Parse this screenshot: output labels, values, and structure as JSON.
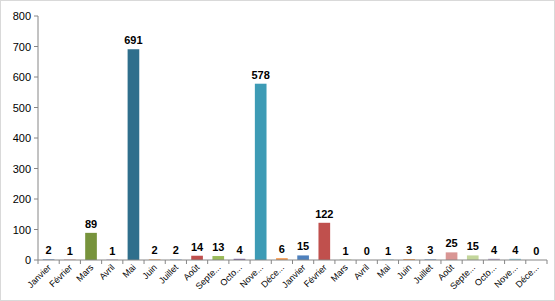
{
  "chart_data": {
    "type": "bar",
    "categories": [
      "Janvier",
      "Février",
      "Mars",
      "Avril",
      "Mai",
      "Juin",
      "Juillet",
      "Août",
      "Septe...",
      "Octo...",
      "Nove...",
      "Déce...",
      "Janvier",
      "Février",
      "Mars",
      "Avril",
      "Mai",
      "Juin",
      "Juillet",
      "Août",
      "Septe...",
      "Octo...",
      "Nove...",
      "Déce..."
    ],
    "values": [
      2,
      1,
      89,
      1,
      691,
      2,
      2,
      14,
      13,
      4,
      578,
      6,
      15,
      122,
      1,
      0,
      1,
      3,
      3,
      25,
      15,
      4,
      4,
      0
    ],
    "colors": [
      "#4f81bd",
      "#c0504d",
      "#77933c",
      "#8064a2",
      "#2f6f8c",
      "#f79646",
      "#95b3d7",
      "#c0504d",
      "#9bbb59",
      "#8064a2",
      "#3d9bb5",
      "#f79646",
      "#4f81bd",
      "#c0504d",
      "#9bbb59",
      "#8064a2",
      "#4bacc6",
      "#f79646",
      "#95b3d7",
      "#d99694",
      "#c3d69b",
      "#b3a2c7",
      "#93cddd",
      "#fac090"
    ],
    "ylim": [
      0,
      800
    ],
    "yticks": [
      0,
      100,
      200,
      300,
      400,
      500,
      600,
      700,
      800
    ],
    "grid": false,
    "data_labels": true
  }
}
